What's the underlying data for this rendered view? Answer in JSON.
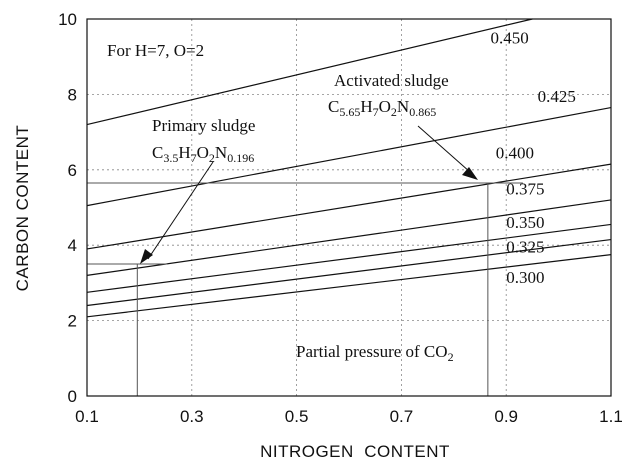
{
  "chart_data": {
    "type": "line",
    "xlabel": "NITROGEN  CONTENT",
    "ylabel": "CARBON CONTENT",
    "xlim": [
      0.1,
      1.1
    ],
    "ylim": [
      0,
      10
    ],
    "x_ticks": [
      "0.1",
      "0.3",
      "0.5",
      "0.7",
      "0.9",
      "1.1"
    ],
    "y_ticks": [
      "0",
      "2",
      "4",
      "6",
      "8",
      "10"
    ],
    "grid": true,
    "condition_note": "For H=7, O=2",
    "series": [
      {
        "name": "0.450",
        "x": [
          0.1,
          0.95
        ],
        "y": [
          7.2,
          10.0
        ]
      },
      {
        "name": "0.425",
        "x": [
          0.1,
          1.1
        ],
        "y": [
          5.05,
          7.65
        ]
      },
      {
        "name": "0.400",
        "x": [
          0.1,
          1.1
        ],
        "y": [
          3.9,
          6.15
        ]
      },
      {
        "name": "0.375",
        "x": [
          0.1,
          1.1
        ],
        "y": [
          3.2,
          5.2
        ]
      },
      {
        "name": "0.350",
        "x": [
          0.1,
          1.1
        ],
        "y": [
          2.75,
          4.55
        ]
      },
      {
        "name": "0.325",
        "x": [
          0.1,
          1.1
        ],
        "y": [
          2.4,
          4.15
        ]
      },
      {
        "name": "0.300",
        "x": [
          0.1,
          1.1
        ],
        "y": [
          2.1,
          3.75
        ]
      }
    ],
    "line_label_positions": [
      {
        "x": 0.87,
        "y": 9.35
      },
      {
        "x": 0.96,
        "y": 7.8
      },
      {
        "x": 0.88,
        "y": 6.3
      },
      {
        "x": 0.9,
        "y": 5.35
      },
      {
        "x": 0.9,
        "y": 4.45
      },
      {
        "x": 0.9,
        "y": 3.8
      },
      {
        "x": 0.9,
        "y": 3.0
      }
    ],
    "annotations": [
      {
        "title": "Primary sludge",
        "formula": {
          "C": "3.5",
          "H": "7",
          "O": "2",
          "N": "0.196"
        },
        "point": {
          "x": 0.196,
          "y": 3.5
        }
      },
      {
        "title": "Activated sludge",
        "formula": {
          "C": "5.65",
          "H": "7",
          "O": "2",
          "N": "0.865"
        },
        "point": {
          "x": 0.865,
          "y": 5.65
        }
      }
    ],
    "note": {
      "text": "Partial pressure of CO",
      "sub": "2"
    }
  }
}
